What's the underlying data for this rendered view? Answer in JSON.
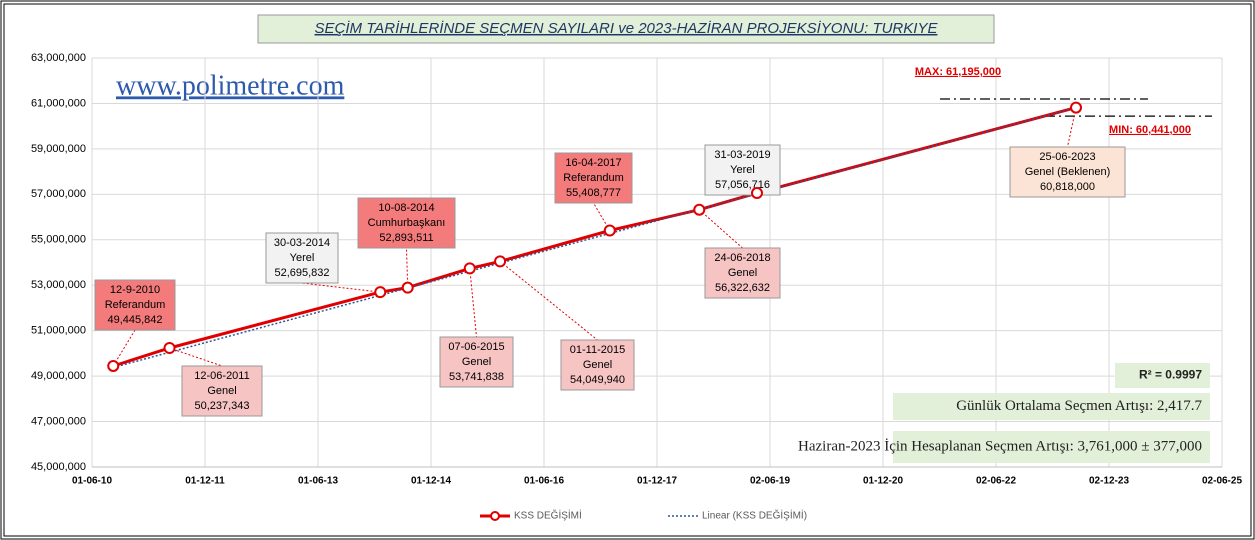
{
  "chart_data": {
    "type": "line",
    "title": "SEÇİM TARİHLERİNDE SEÇMEN SAYILARI ve 2023-HAZİRAN PROJEKSİYONU: TURKIYE",
    "watermark": "www.polimetre.com",
    "xlim": [
      "2010-06-01",
      "2025-06-02"
    ],
    "xticks": [
      {
        "value": "2010-06-01",
        "label": "01-06-10"
      },
      {
        "value": "2011-12-01",
        "label": "01-12-11"
      },
      {
        "value": "2013-06-01",
        "label": "01-06-13"
      },
      {
        "value": "2014-12-01",
        "label": "01-12-14"
      },
      {
        "value": "2016-06-01",
        "label": "01-06-16"
      },
      {
        "value": "2017-12-01",
        "label": "01-12-17"
      },
      {
        "value": "2019-06-02",
        "label": "02-06-19"
      },
      {
        "value": "2020-12-01",
        "label": "01-12-20"
      },
      {
        "value": "2022-06-02",
        "label": "02-06-22"
      },
      {
        "value": "2023-12-02",
        "label": "02-12-23"
      },
      {
        "value": "2025-06-02",
        "label": "02-06-25"
      }
    ],
    "ylim": [
      45000000,
      63000000
    ],
    "yticks": [
      {
        "value": 45000000,
        "label": "45,000,000"
      },
      {
        "value": 47000000,
        "label": "47,000,000"
      },
      {
        "value": 49000000,
        "label": "49,000,000"
      },
      {
        "value": 51000000,
        "label": "51,000,000"
      },
      {
        "value": 53000000,
        "label": "53,000,000"
      },
      {
        "value": 55000000,
        "label": "55,000,000"
      },
      {
        "value": 57000000,
        "label": "57,000,000"
      },
      {
        "value": 59000000,
        "label": "59,000,000"
      },
      {
        "value": 61000000,
        "label": "61,000,000"
      },
      {
        "value": 63000000,
        "label": "63,000,000"
      }
    ],
    "grid": true,
    "series": [
      {
        "name": "KSS DEĞİŞİMİ",
        "color": "#e00000",
        "x": [
          "2010-09-12",
          "2011-06-12",
          "2014-03-30",
          "2014-08-10",
          "2015-06-07",
          "2015-11-01",
          "2017-04-16",
          "2018-06-24",
          "2019-03-31",
          "2023-06-25"
        ],
        "values": [
          49445842,
          50237343,
          52695832,
          52893511,
          53741838,
          54049940,
          55408777,
          56322632,
          57056716,
          60818000
        ],
        "value_labels": [
          "49,445,842",
          "50,237,343",
          "52,695,832",
          "52,893,511",
          "53,741,838",
          "54,049,940",
          "55,408,777",
          "56,322,632",
          "57,056,716",
          "60,818,000"
        ],
        "point_labels": [
          {
            "date": "12-9-2010",
            "kind": "Referandum",
            "color": "#f47b7b"
          },
          {
            "date": "12-06-2011",
            "kind": "Genel",
            "color": "#f7c4c4"
          },
          {
            "date": "30-03-2014",
            "kind": "Yerel",
            "color": "#f2f2f2"
          },
          {
            "date": "10-08-2014",
            "kind": "Cumhurbaşkanı",
            "color": "#f47b7b"
          },
          {
            "date": "07-06-2015",
            "kind": "Genel",
            "color": "#f7c4c4"
          },
          {
            "date": "01-11-2015",
            "kind": "Genel",
            "color": "#f7c4c4"
          },
          {
            "date": "16-04-2017",
            "kind": "Referandum",
            "color": "#f47b7b"
          },
          {
            "date": "24-06-2018",
            "kind": "Genel",
            "color": "#f7c4c4"
          },
          {
            "date": "31-03-2019",
            "kind": "Yerel",
            "color": "#f2f2f2"
          },
          {
            "date": "25-06-2023",
            "kind": "Genel (Beklenen)",
            "color": "#fbe4d5"
          }
        ]
      },
      {
        "name": "Linear (KSS DEĞİŞİMİ)",
        "color": "#2f5597",
        "style": "dotted",
        "x": [
          "2010-09-12",
          "2023-06-25"
        ],
        "values": [
          49380000,
          60818000
        ]
      }
    ],
    "bounds": [
      {
        "label": "MAX: 61,195,000",
        "value": 61195000
      },
      {
        "label": "MIN: 60,441,000",
        "value": 60441000
      }
    ],
    "notes": [
      "R² = 0.9997",
      "Günlük Ortalama Seçmen Artışı: 2,417.7",
      "Haziran-2023 İçin Hesaplanan Seçmen Artışı: 3,761,000 ± 377,000"
    ]
  }
}
